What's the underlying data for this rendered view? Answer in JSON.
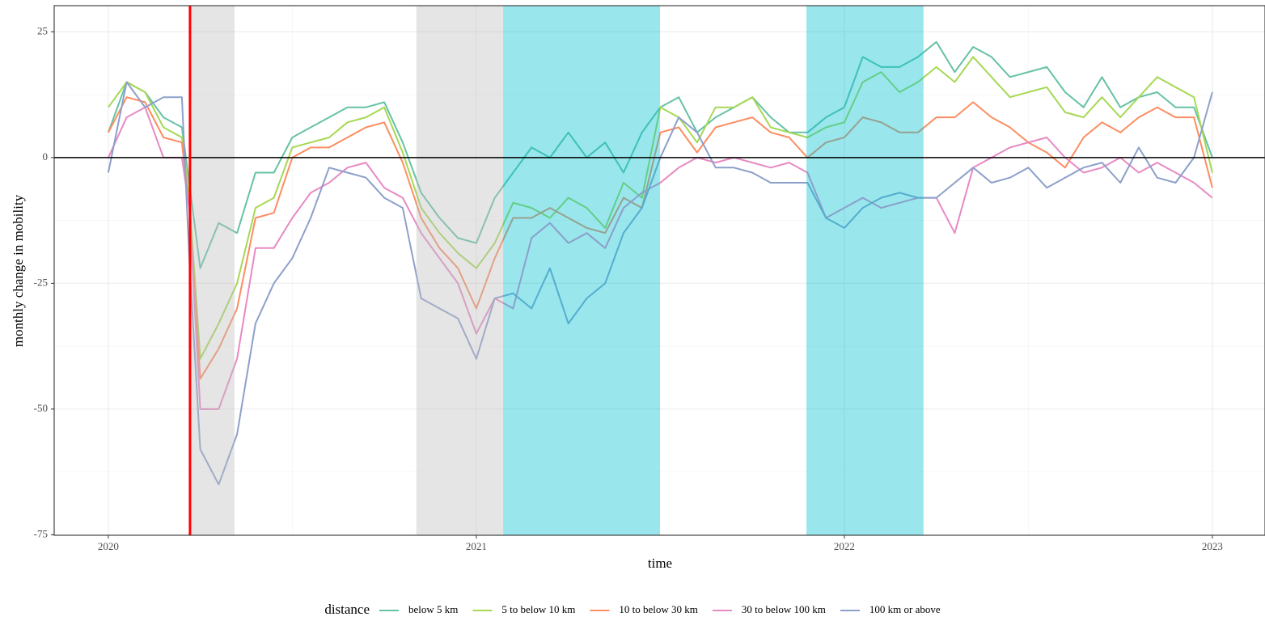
{
  "chart_data": {
    "type": "line",
    "x_label": "time",
    "y_label": "monthly change in mobility",
    "legend_title": "distance",
    "legend_position": "bottom",
    "grid": true,
    "xlim": [
      2019.853,
      2023.143
    ],
    "xticks": [
      2020,
      2021,
      2022,
      2023
    ],
    "ylim": [
      -75.1,
      30.2
    ],
    "yticks": [
      -75,
      -50,
      -25,
      0,
      25
    ],
    "hline": {
      "y": 0,
      "color": "#000000"
    },
    "vline": {
      "x": 2020.222,
      "color": "#ff0000"
    },
    "shaded_periods": [
      {
        "start": 2020.222,
        "end": 2020.343,
        "color": "#bebebe"
      },
      {
        "start": 2020.837,
        "end": 2021.073,
        "color": "#bebebe"
      },
      {
        "start": 2021.073,
        "end": 2021.499,
        "color": "#00c0d2"
      },
      {
        "start": 2021.897,
        "end": 2022.215,
        "color": "#00c0d2"
      }
    ],
    "x": [
      2020.0,
      2020.05,
      2020.1,
      2020.15,
      2020.2,
      2020.22,
      2020.25,
      2020.3,
      2020.35,
      2020.4,
      2020.45,
      2020.5,
      2020.55,
      2020.6,
      2020.65,
      2020.7,
      2020.75,
      2020.8,
      2020.85,
      2020.9,
      2020.95,
      2021.0,
      2021.05,
      2021.1,
      2021.15,
      2021.2,
      2021.25,
      2021.3,
      2021.35,
      2021.4,
      2021.45,
      2021.5,
      2021.55,
      2021.6,
      2021.65,
      2021.7,
      2021.75,
      2021.8,
      2021.85,
      2021.9,
      2021.95,
      2022.0,
      2022.05,
      2022.1,
      2022.15,
      2022.2,
      2022.25,
      2022.3,
      2022.35,
      2022.4,
      2022.45,
      2022.5,
      2022.55,
      2022.6,
      2022.65,
      2022.7,
      2022.75,
      2022.8,
      2022.85,
      2022.9,
      2022.95,
      2023.0
    ],
    "series": [
      {
        "name": "below 5 km",
        "color": "#66c2a5",
        "values": [
          5,
          15,
          13,
          8,
          6,
          -5,
          -22,
          -13,
          -15,
          -3,
          -3,
          4,
          6,
          8,
          10,
          10,
          11,
          3,
          -7,
          -12,
          -16,
          -17,
          -8,
          -3,
          2,
          0,
          5,
          0,
          3,
          -3,
          5,
          10,
          12,
          5,
          8,
          10,
          12,
          8,
          5,
          5,
          8,
          10,
          20,
          18,
          18,
          20,
          23,
          17,
          22,
          20,
          16,
          17,
          18,
          13,
          10,
          16,
          10,
          12,
          13,
          10,
          10,
          0
        ]
      },
      {
        "name": "5 to below 10 km",
        "color": "#a6d854",
        "values": [
          10,
          15,
          13,
          6,
          4,
          -8,
          -40,
          -33,
          -25,
          -10,
          -8,
          2,
          3,
          4,
          7,
          8,
          10,
          1,
          -10,
          -15,
          -19,
          -22,
          -17,
          -9,
          -10,
          -12,
          -8,
          -10,
          -14,
          -5,
          -8,
          10,
          8,
          3,
          10,
          10,
          12,
          6,
          5,
          4,
          6,
          7,
          15,
          17,
          13,
          15,
          18,
          15,
          20,
          16,
          12,
          13,
          14,
          9,
          8,
          12,
          8,
          12,
          16,
          14,
          12,
          -3
        ]
      },
      {
        "name": "10 to below 30 km",
        "color": "#fc8d62",
        "values": [
          5,
          12,
          11,
          4,
          3,
          -10,
          -44,
          -38,
          -30,
          -12,
          -11,
          0,
          2,
          2,
          4,
          6,
          7,
          -1,
          -12,
          -18,
          -22,
          -30,
          -20,
          -12,
          -12,
          -10,
          -12,
          -14,
          -15,
          -8,
          -10,
          5,
          6,
          1,
          6,
          7,
          8,
          5,
          4,
          0,
          3,
          4,
          8,
          7,
          5,
          5,
          8,
          8,
          11,
          8,
          6,
          3,
          1,
          -2,
          4,
          7,
          5,
          8,
          10,
          8,
          8,
          -6
        ]
      },
      {
        "name": "30 to below 100 km",
        "color": "#e78ac3",
        "values": [
          0,
          8,
          10,
          0,
          0,
          -10,
          -50,
          -50,
          -40,
          -18,
          -18,
          -12,
          -7,
          -5,
          -2,
          -1,
          -6,
          -8,
          -15,
          -20,
          -25,
          -35,
          -28,
          -30,
          -16,
          -13,
          -17,
          -15,
          -18,
          -10,
          -7,
          -5,
          -2,
          0,
          -1,
          0,
          -1,
          -2,
          -1,
          -3,
          -12,
          -10,
          -8,
          -10,
          -9,
          -8,
          -8,
          -15,
          -2,
          0,
          2,
          3,
          4,
          0,
          -3,
          -2,
          0,
          -3,
          -1,
          -3,
          -5,
          -8
        ]
      },
      {
        "name": "100 km or above",
        "color": "#8da0cb",
        "values": [
          -3,
          15,
          10,
          12,
          12,
          -20,
          -58,
          -65,
          -55,
          -33,
          -25,
          -20,
          -12,
          -2,
          -3,
          -4,
          -8,
          -10,
          -28,
          -30,
          -32,
          -40,
          -28,
          -27,
          -30,
          -22,
          -33,
          -28,
          -25,
          -15,
          -10,
          0,
          8,
          5,
          -2,
          -2,
          -3,
          -5,
          -5,
          -5,
          -12,
          -14,
          -10,
          -8,
          -7,
          -8,
          -8,
          -5,
          -2,
          -5,
          -4,
          -2,
          -6,
          -4,
          -2,
          -1,
          -5,
          2,
          -4,
          -5,
          0,
          13
        ]
      }
    ]
  }
}
